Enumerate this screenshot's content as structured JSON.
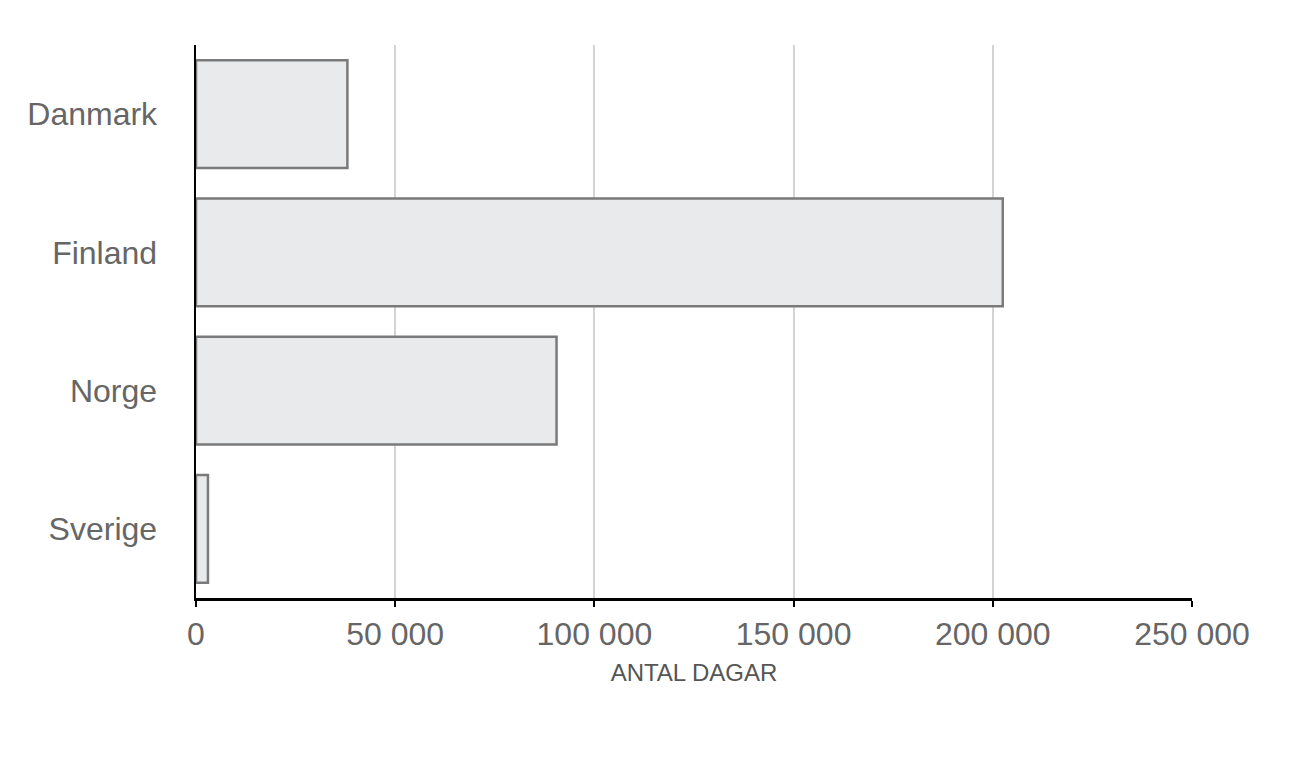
{
  "chart_data": {
    "type": "bar",
    "orientation": "horizontal",
    "categories": [
      "Danmark",
      "Finland",
      "Norge",
      "Sverige"
    ],
    "values": [
      38000,
      202500,
      90500,
      3000
    ],
    "color": "#e8eaec",
    "x_label": "ANTAL DAGAR",
    "xlim": [
      0,
      250000
    ],
    "xticks": [
      0,
      {
        "value": 50000,
        "label": "50 000"
      },
      {
        "value": 100000,
        "label": "100 000"
      },
      {
        "value": 150000,
        "label": "150 000"
      },
      {
        "value": 200000,
        "label": "200 000"
      },
      {
        "value": 250000,
        "label": "250 000"
      }
    ],
    "grid": true
  }
}
